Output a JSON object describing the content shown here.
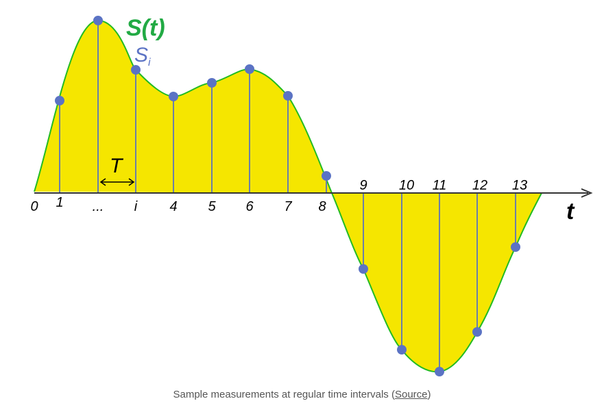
{
  "diagram": {
    "signal_label": "S(t)",
    "sample_label_base": "S",
    "sample_label_sub": "i",
    "period_label": "T",
    "axis_label": "t",
    "tick_labels": [
      "0",
      "1",
      "...",
      "i",
      "4",
      "5",
      "6",
      "7",
      "8",
      "9",
      "10",
      "11",
      "12",
      "13"
    ],
    "colors": {
      "fill": "#f5e600",
      "curve": "#22bb22",
      "sample_point": "#5b73c4",
      "sample_line": "#6b7fa8",
      "axis": "#333333",
      "signal_label": "#22aa44",
      "sample_label": "#5b73c4"
    }
  },
  "caption": {
    "text": "Sample measurements at regular time intervals (",
    "link": "Source",
    "suffix": ")"
  }
}
